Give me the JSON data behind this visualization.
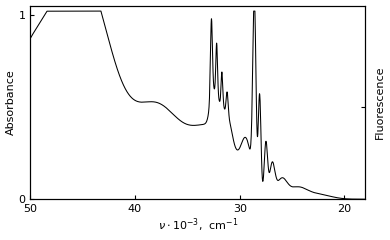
{
  "title": "",
  "xlabel": "\\nu\\cdot10^{-3},  cm^{-1}",
  "ylabel_left": "Absorbance",
  "ylabel_right": "Fluorescence",
  "xlim_left": 50,
  "xlim_right": 18,
  "ylim": [
    0,
    1.05
  ],
  "xticks": [
    50,
    40,
    30,
    20
  ],
  "xtick_labels": [
    "50",
    "40",
    "30",
    "20"
  ],
  "yticks_left": [
    0,
    1
  ],
  "ytick_labels_left": [
    "0",
    "1"
  ],
  "background_color": "#ffffff",
  "line_color": "#000000"
}
